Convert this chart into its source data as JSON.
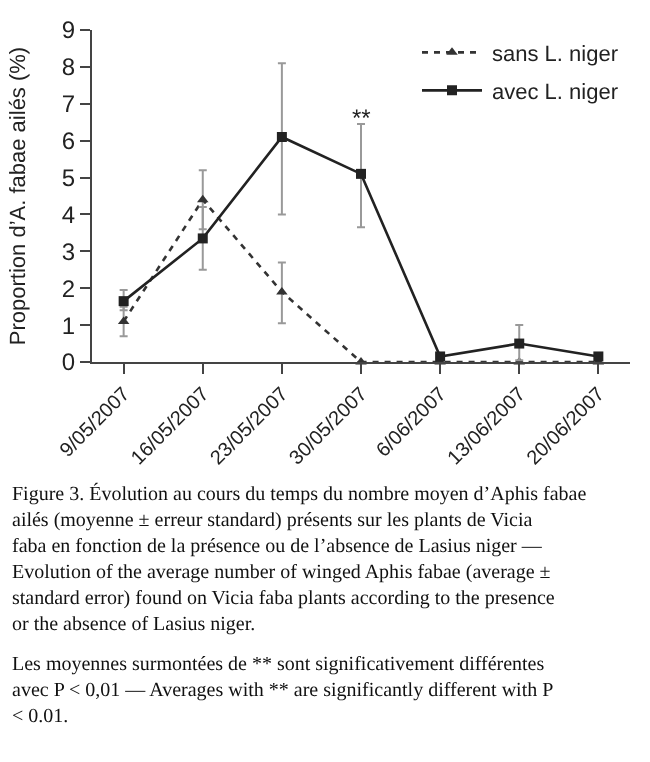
{
  "chart_data": {
    "type": "line",
    "ylabel": "Proportion d’A. fabae ailés (%)",
    "categories": [
      "9/05/2007",
      "16/05/2007",
      "23/05/2007",
      "30/05/2007",
      "6/06/2007",
      "13/06/2007",
      "20/06/2007"
    ],
    "series": [
      {
        "name": "sans L. niger",
        "color": "#333333",
        "marker": "triangle",
        "line_style": "dotted",
        "values": [
          1.1,
          4.4,
          1.9,
          0,
          0,
          0,
          0
        ],
        "errors": [
          [
            0.7,
            1.5
          ],
          [
            3.6,
            5.2
          ],
          [
            1.05,
            2.7
          ],
          null,
          null,
          null,
          null
        ]
      },
      {
        "name": "avec L. niger",
        "color": "#222222",
        "marker": "square",
        "line_style": "solid",
        "values": [
          1.65,
          3.35,
          6.1,
          5.1,
          0.15,
          0.5,
          0.15
        ],
        "errors": [
          [
            1.4,
            1.95
          ],
          [
            2.5,
            4.2
          ],
          [
            4.0,
            8.1
          ],
          [
            3.65,
            6.45
          ],
          null,
          [
            0.05,
            1.0
          ],
          null
        ]
      }
    ],
    "ylim": [
      0,
      9
    ],
    "yticks": [
      0,
      1,
      2,
      3,
      4,
      5,
      6,
      7,
      8,
      9
    ],
    "legend": "top right",
    "annotations": [
      "**",
      "Figure 3. Évolution au cours du temps du nombre moyen d’Aphis fabae ailés (moyenne ± erreur standard) présents sur les plants de Vicia faba en fonction de la présence ou de l’absence de Lasius niger — Evolution of the average number of winged Aphis fabae (average ± standard error) found on Vicia faba plants according to the presence or the absence of Lasius niger.",
      "Les moyennes surmontées de ** sont significativement différentes avec P < 0,01 — Averages with ** are significantly different with P < 0.01."
    ]
  }
}
